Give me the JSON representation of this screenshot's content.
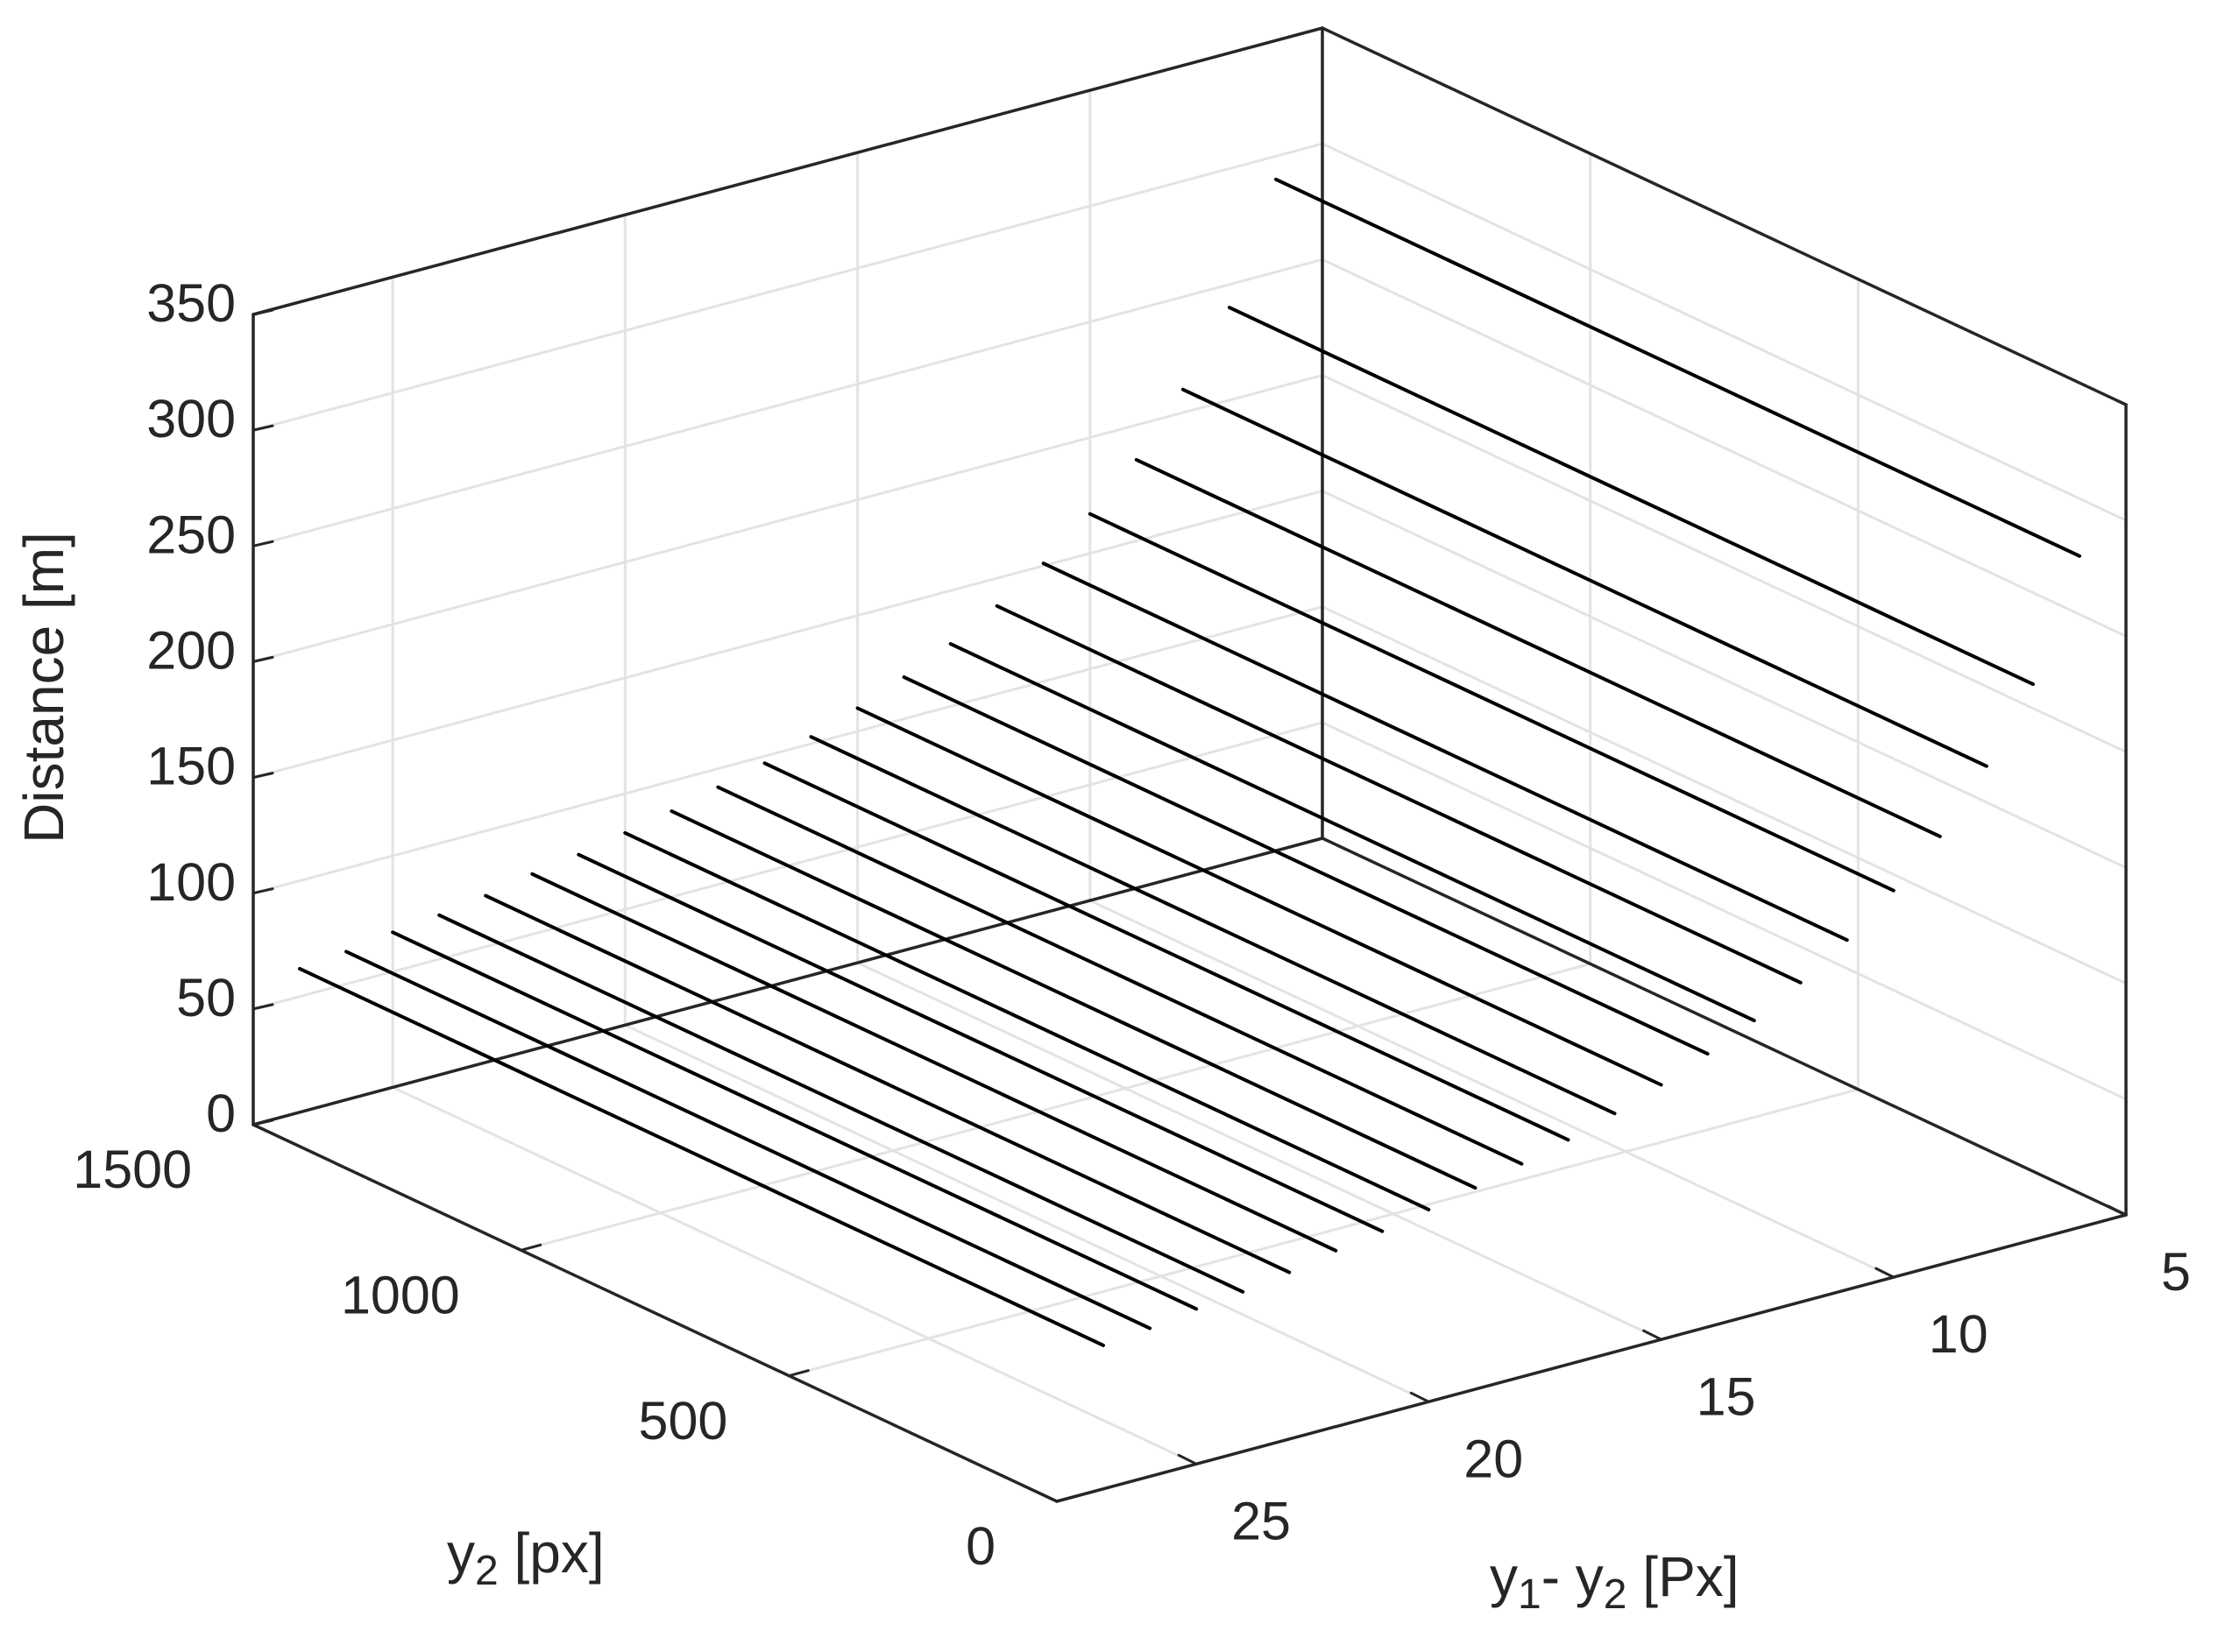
{
  "chart_data": {
    "type": "line",
    "projection": "3d",
    "title": "",
    "xlabel": {
      "base": "y",
      "sub": "2",
      "rest": " [px]"
    },
    "ylabel": {
      "base1": "y",
      "sub1": "1",
      "mid": "- ",
      "base2": "y",
      "sub2": "2",
      "rest": " [Px]"
    },
    "zlabel": "Distance [m]",
    "xlim": [
      0,
      1500
    ],
    "ylim": [
      5,
      28
    ],
    "zlim": [
      0,
      350
    ],
    "xticks": [
      0,
      500,
      1000,
      1500
    ],
    "yticks": [
      5,
      10,
      15,
      20,
      25
    ],
    "zticks": [
      0,
      50,
      100,
      150,
      200,
      250,
      300,
      350
    ],
    "grid": true,
    "line_color": "#000000",
    "x_range": [
      0,
      1500
    ],
    "series": [
      {
        "disparity": 6,
        "distance": 290
      },
      {
        "disparity": 7,
        "distance": 240
      },
      {
        "disparity": 8,
        "distance": 210
      },
      {
        "disparity": 9,
        "distance": 185
      },
      {
        "disparity": 10,
        "distance": 167
      },
      {
        "disparity": 11,
        "distance": 151
      },
      {
        "disparity": 12,
        "distance": 138
      },
      {
        "disparity": 13,
        "distance": 127
      },
      {
        "disparity": 14,
        "distance": 118
      },
      {
        "disparity": 15,
        "distance": 110
      },
      {
        "disparity": 16,
        "distance": 103
      },
      {
        "disparity": 17,
        "distance": 97
      },
      {
        "disparity": 18,
        "distance": 92
      },
      {
        "disparity": 19,
        "distance": 87
      },
      {
        "disparity": 20,
        "distance": 83
      },
      {
        "disparity": 21,
        "distance": 79
      },
      {
        "disparity": 22,
        "distance": 76
      },
      {
        "disparity": 23,
        "distance": 72
      },
      {
        "disparity": 24,
        "distance": 69
      },
      {
        "disparity": 25,
        "distance": 67
      },
      {
        "disparity": 26,
        "distance": 64
      },
      {
        "disparity": 27,
        "distance": 62
      }
    ]
  }
}
